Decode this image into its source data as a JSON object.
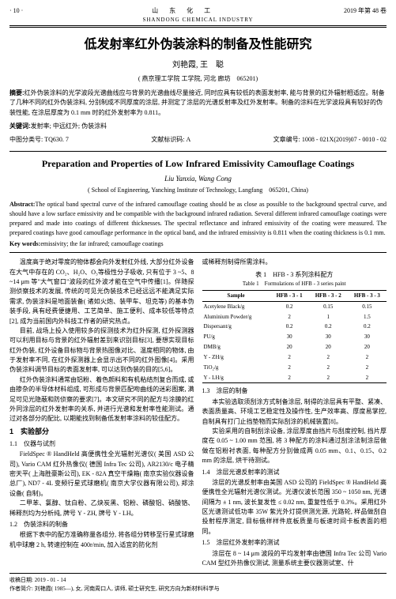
{
  "header": {
    "left": "· 10 ·",
    "center_cn": "山 东 化 工",
    "center_en": "SHANDONG CHEMICAL INDUSTRY",
    "right": "2019 年第 48 卷"
  },
  "title_cn": "低发射率红外伪装涂料的制备及性能研究",
  "authors_cn": "刘艳霞, 王　聪",
  "affiliation_cn": "( 燕京理工学院 工学院, 河北 廊坊　065201)",
  "abstract_cn_label": "摘要:",
  "abstract_cn": "红外伪装涂料的光学波段光谱曲线应与背景的光谱曲线尽量接近, 同时应具有较低的表面发射率, 能与背景的红外辐射相适应。制备了几种不同的红外伪装涂料, 分别制成不同厚度的涂层, 并测定了涂层的光谱反射率及红外发射率。制备的涂料在光学波段具有较好的伪装性能, 在涂层厚度为 0.1 mm 时的红外发射率为 0.811。",
  "keywords_cn_label": "关键词:",
  "keywords_cn": "发射率; 中远红外; 伪装涂料",
  "meta": {
    "clc": "中图分类号: TQ630. 7",
    "doc_code": "文献标识码: A",
    "article_no": "文章编号: 1008 - 021X(2019)07 - 0010 - 02"
  },
  "title_en": "Preparation and Properties of Low Infrared Emissivity Camouflage Coatings",
  "authors_en": "Liu Yanxia, Wang Cong",
  "affiliation_en": "( School of Engineering, Yanching Institute of Technology, Langfang　065201, China)",
  "abstract_en_label": "Abstract:",
  "abstract_en": "The optical band spectral curve of the infrared camouflage coating should be as close as possible to the background spectral curve, and should have a low surface emissivity and be compatible with the background infrared radiation. Several different infrared camouflage coatings were prepared and made into coatings of different thicknesses. The spectral reflectance and infrared emissivity of the coating were measured. The prepared coatings have good camouflage performance in the optical band, and the infrared emissivity is 0.811 when the coating thickness is 0.1 mm.",
  "keywords_en_label": "Key words:",
  "keywords_en": "emissivity; the far infrared; camouflage coatings",
  "left_col": {
    "p1": "温度高于绝对零度的物体都会向外发射红外线, 大部分红外设备在大气中存在的 CO₂、H₂O、O₃等极性分子吸收, 只有位于 3 ~5、8 ~14 μm 等\"大气窗口\"波段的红外波才能在空气中传播[1]。伴随探测侦察技术的发展, 传统的可见光伪装技术已经远远不能满足实际需求, 伪装涂料是地面装备( 诸如火炮、装甲车、坦克等) 的基本伪装手段, 具有经费便捷用、工艺简单、施工便利、成本较低等特点[2], 成为当前国内外科技工作者的研究热点。",
    "p2": "目前, 战场上投入使用较多的探测技术为红外探测, 红外探测器可以利用目标与背景的红外辐射差别来识别目标[3], 要想实现目标红外伪装, 红外设备目标物与背景热图像对比、温度相同的物体, 由于发射率不同, 在红外探测器上会显示出不同的红外图像[4]。采用伪装涂料调节目标的表面发射率, 可以达到伪装的目的[5,6]。",
    "p3": "红外伪装涂料通常由铝粉、着色颜料和有机粘结剂复合而成, 或由掺杂的半导体材料组成, 可形成与背景匹配吻曲线的迷彩图案, 满足可见光隐蔽和防侦察的要求[7]。本文研究不同的配方与涂膜的红外同涂层的红外发射率的关系, 并进行光谱和发射率性能测试。通过对各部分的配比, 以期能找到制备低发射率涂料的较佳配方。",
    "s1_head": "1　实验部分",
    "s11_head": "1.1　仪器与试剂",
    "p4": "FieldSpec ® HandHeld 高便携性全光辐射光谱仪( 美国 ASD 公司), Vario CAM 红外热像仪( 德国 Infra Tec 公司), AR2130/c 电子精密天平( 上海胜豪斯公司), EK - 82A 真空干燥箱( 南京实验仪器设备总厂), ND7 - 4L 变频行星式球磨机( 南京大学仪器有限公司), 郑涂设备( 自制)。",
    "p5": "二甲苯、氯醇、钛白粉、乙炔炭黑、铝粉、磷酸铝、硝酸铬、稀释剂均为分析纯, 牌号 Y - ZH, 牌号 Y - LH。",
    "s12_head": "1.2　伪装涂料的制备",
    "p6": "根据下表中的配方准确称量各组分, 将各组分转移至行星式球磨机中球磨 2 h, 转速控制在 400r/min, 加入适宜的防化剂"
  },
  "right_col": {
    "p1": "或稀释剂制得所需涂料。",
    "table_caption_cn": "表 1　HFB - 3 系列涂料配方",
    "table_caption_en": "Table 1　Formulations of HFB - 3 series paint",
    "table": {
      "columns": [
        "Sample",
        "HFB - 3 - 1",
        "HFB - 3 - 2",
        "HFB - 3 - 3"
      ],
      "rows": [
        [
          "Acetylene Black/g",
          "0.2",
          "0.15",
          "0.15"
        ],
        [
          "Aluminium Powder/g",
          "2",
          "1",
          "1.5"
        ],
        [
          "Dispersant/g",
          "0.2",
          "0.2",
          "0.2"
        ],
        [
          "PU/g",
          "30",
          "30",
          "30"
        ],
        [
          "DMB/g",
          "20",
          "20",
          "20"
        ],
        [
          "Y - ZH/g",
          "2",
          "2",
          "2"
        ],
        [
          "TiO₂/g",
          "2",
          "2",
          "2"
        ],
        [
          "Y - LH/g",
          "2",
          "2",
          "2"
        ]
      ]
    },
    "s13_head": "1.3　涂层的制备",
    "p2": "本实验选取须刮涂方式制备涂层, 制得的涂层具有平整、紧凑、表面质量高、环境工艺稳定性及操作性, 生产效率高、厚度易掌控, 自制具有打门止挡垫物而实际刮涂的机械装置[8]。",
    "p3": "实验采用的自制刮涂设备, 涂层厚度由挡片与刮度控制, 挡片厚度在 0.05 ~ 1.00 mm 范围, 将 3 种配方的涂料通过刮涂法制涂层做做在铝粉衬表面, 每种配方分别做成两 0.05 mm、0.1、0.15、0.2 mm 的涂层, 烘干待测试。",
    "s14_head": "1.4　涂层光谱反射率的测试",
    "p4": "涂层的光谱反射率由美国 ASD 公司的 FieldSpec ® HandHeld 高便携性全光辐射光谱仪测试。光谱仪波长范围 350 ~ 1050 nm, 光谱间隔为 ± 1 nm, 波长复发性 ≤ 0.02 nm, 重复性低于 0.3%。采用红外区光谱测试低功率 35W 紫光外灯提供测光源, 光路轮, 样品做刮自投射程序测定, 目标俄样样件底板质量与板速时间卡板表面的相同。",
    "s15_head": "1.5　涂层红外发射率的测试",
    "p5": "涂层在 8 ~ 14 μm 波段的平均发射率由德国 Infra Tec 公司 Vario CAM 型红外热像仪测试, 测量系统主要仪器测试室、什"
  },
  "footnote": {
    "received": "收稿日期: 2019 - 01 - 14",
    "author_info": "作者简介: 刘艳霞( 1985—), 女, 河南周口人, 讲师, 硕士研究生, 研究方向为新材料科学与"
  }
}
